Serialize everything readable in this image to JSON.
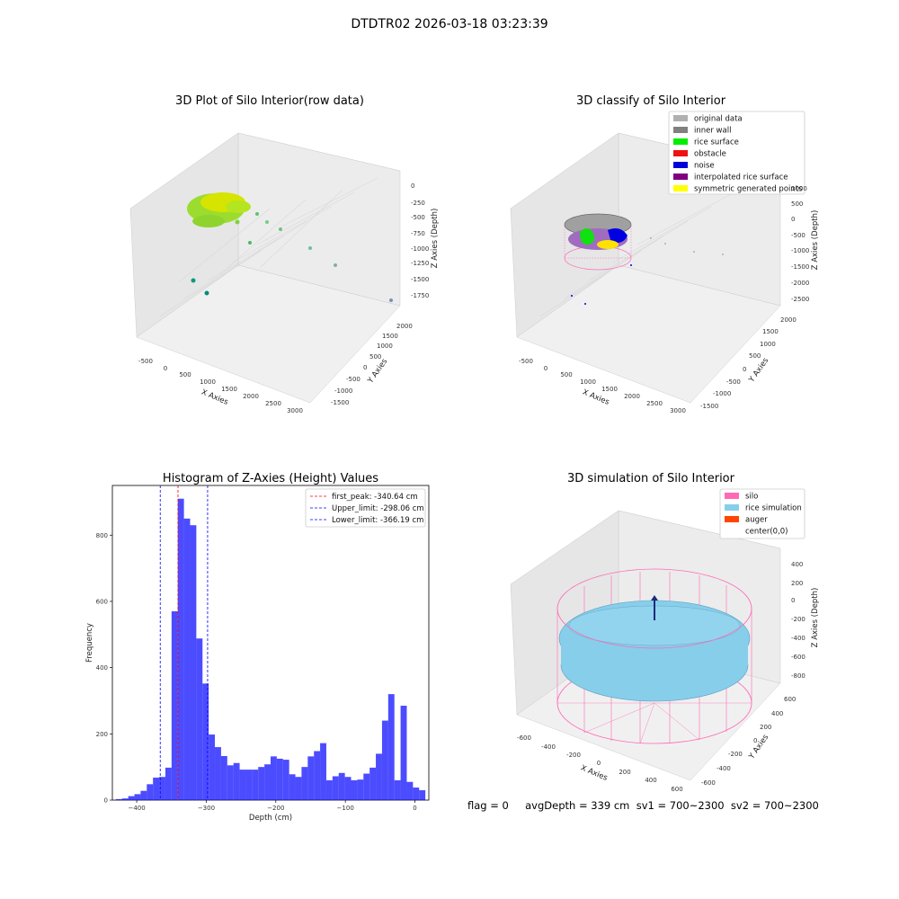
{
  "figure": {
    "title": "DTDTR02 2026-03-18 03:23:39",
    "footer": "flag = 0     avgDepth = 339 cm  sv1 = 700~2300  sv2 = 700~2300"
  },
  "panels": {
    "raw": {
      "title": "3D Plot of Silo Interior(row data)",
      "xlabel": "X Axies",
      "ylabel": "Y Axies",
      "zlabel": "Z Axies (Depth)",
      "xticks": [
        "-500",
        "0",
        "500",
        "1000",
        "1500",
        "2000",
        "2500",
        "3000"
      ],
      "yticks": [
        "-1500",
        "-1000",
        "-500",
        "0",
        "500",
        "1000",
        "1500",
        "2000"
      ],
      "zticks": [
        "0",
        "-250",
        "-500",
        "-750",
        "-1000",
        "-1250",
        "-1500",
        "-1750"
      ]
    },
    "classify": {
      "title": "3D classify of Silo Interior",
      "xlabel": "X Axies",
      "ylabel": "Y Axies",
      "zlabel": "Z Axies (Depth)",
      "xticks": [
        "-500",
        "0",
        "500",
        "1000",
        "1500",
        "2000",
        "2500",
        "3000"
      ],
      "yticks": [
        "-1500",
        "-1000",
        "-500",
        "0",
        "500",
        "1000",
        "1500",
        "2000"
      ],
      "zticks": [
        "1000",
        "500",
        "0",
        "-500",
        "-1000",
        "-1500",
        "-2000",
        "-2500"
      ],
      "legend": [
        {
          "label": "original data",
          "color": "#b0b0b0"
        },
        {
          "label": "inner wall",
          "color": "#808080"
        },
        {
          "label": "rice surface",
          "color": "#00ee00"
        },
        {
          "label": "obstacle",
          "color": "#ee1111"
        },
        {
          "label": "noise",
          "color": "#0000dd"
        },
        {
          "label": "interpolated rice surface",
          "color": "#800080"
        },
        {
          "label": "symmetric generated points",
          "color": "#ffff00"
        }
      ]
    },
    "simulation": {
      "title": "3D simulation of Silo Interior",
      "xlabel": "X Axies",
      "ylabel": "Y Axies",
      "zlabel": "Z Axies (Depth)",
      "xticks": [
        "-600",
        "-400",
        "-200",
        "0",
        "200",
        "400",
        "600"
      ],
      "yticks": [
        "600",
        "400",
        "200",
        "0",
        "-200",
        "-400",
        "-600"
      ],
      "zticks": [
        "400",
        "200",
        "0",
        "-200",
        "-400",
        "-600",
        "-800"
      ],
      "legend": [
        {
          "label": "silo",
          "color": "#ff69b4"
        },
        {
          "label": "rice simulation",
          "color": "#87ceeb"
        },
        {
          "label": "auger",
          "color": "#ff4500"
        },
        {
          "label": "center(0,0)",
          "color": ""
        }
      ]
    }
  },
  "chart_data": [
    {
      "type": "histogram",
      "title": "Histogram of Z-Axies (Height) Values",
      "xlabel": "Depth (cm)",
      "ylabel": "Frequency",
      "xlim": [
        -435,
        20
      ],
      "ylim": [
        0,
        950
      ],
      "xticks": [
        -400,
        -300,
        -200,
        -100,
        0
      ],
      "yticks": [
        0,
        200,
        400,
        600,
        800
      ],
      "bar_color": "#0000ff",
      "bin_start": -430,
      "bin_width": 8.9,
      "values": [
        3,
        5,
        12,
        18,
        28,
        48,
        68,
        70,
        98,
        570,
        910,
        850,
        830,
        488,
        352,
        198,
        160,
        133,
        105,
        112,
        92,
        92,
        92,
        100,
        108,
        132,
        125,
        122,
        78,
        70,
        100,
        132,
        148,
        172,
        60,
        72,
        82,
        70,
        60,
        62,
        80,
        98,
        140,
        240,
        320,
        60,
        285,
        55,
        38,
        30
      ],
      "vlines": [
        {
          "label": "first_peak: -340.64 cm",
          "x": -340.64,
          "color": "#ff0000"
        },
        {
          "label": "Upper_limit: -298.06 cm",
          "x": -298.06,
          "color": "#0000ff"
        },
        {
          "label": "Lower_limit: -366.19 cm",
          "x": -366.19,
          "color": "#0000ff"
        }
      ],
      "legend_position": "upper right"
    }
  ]
}
